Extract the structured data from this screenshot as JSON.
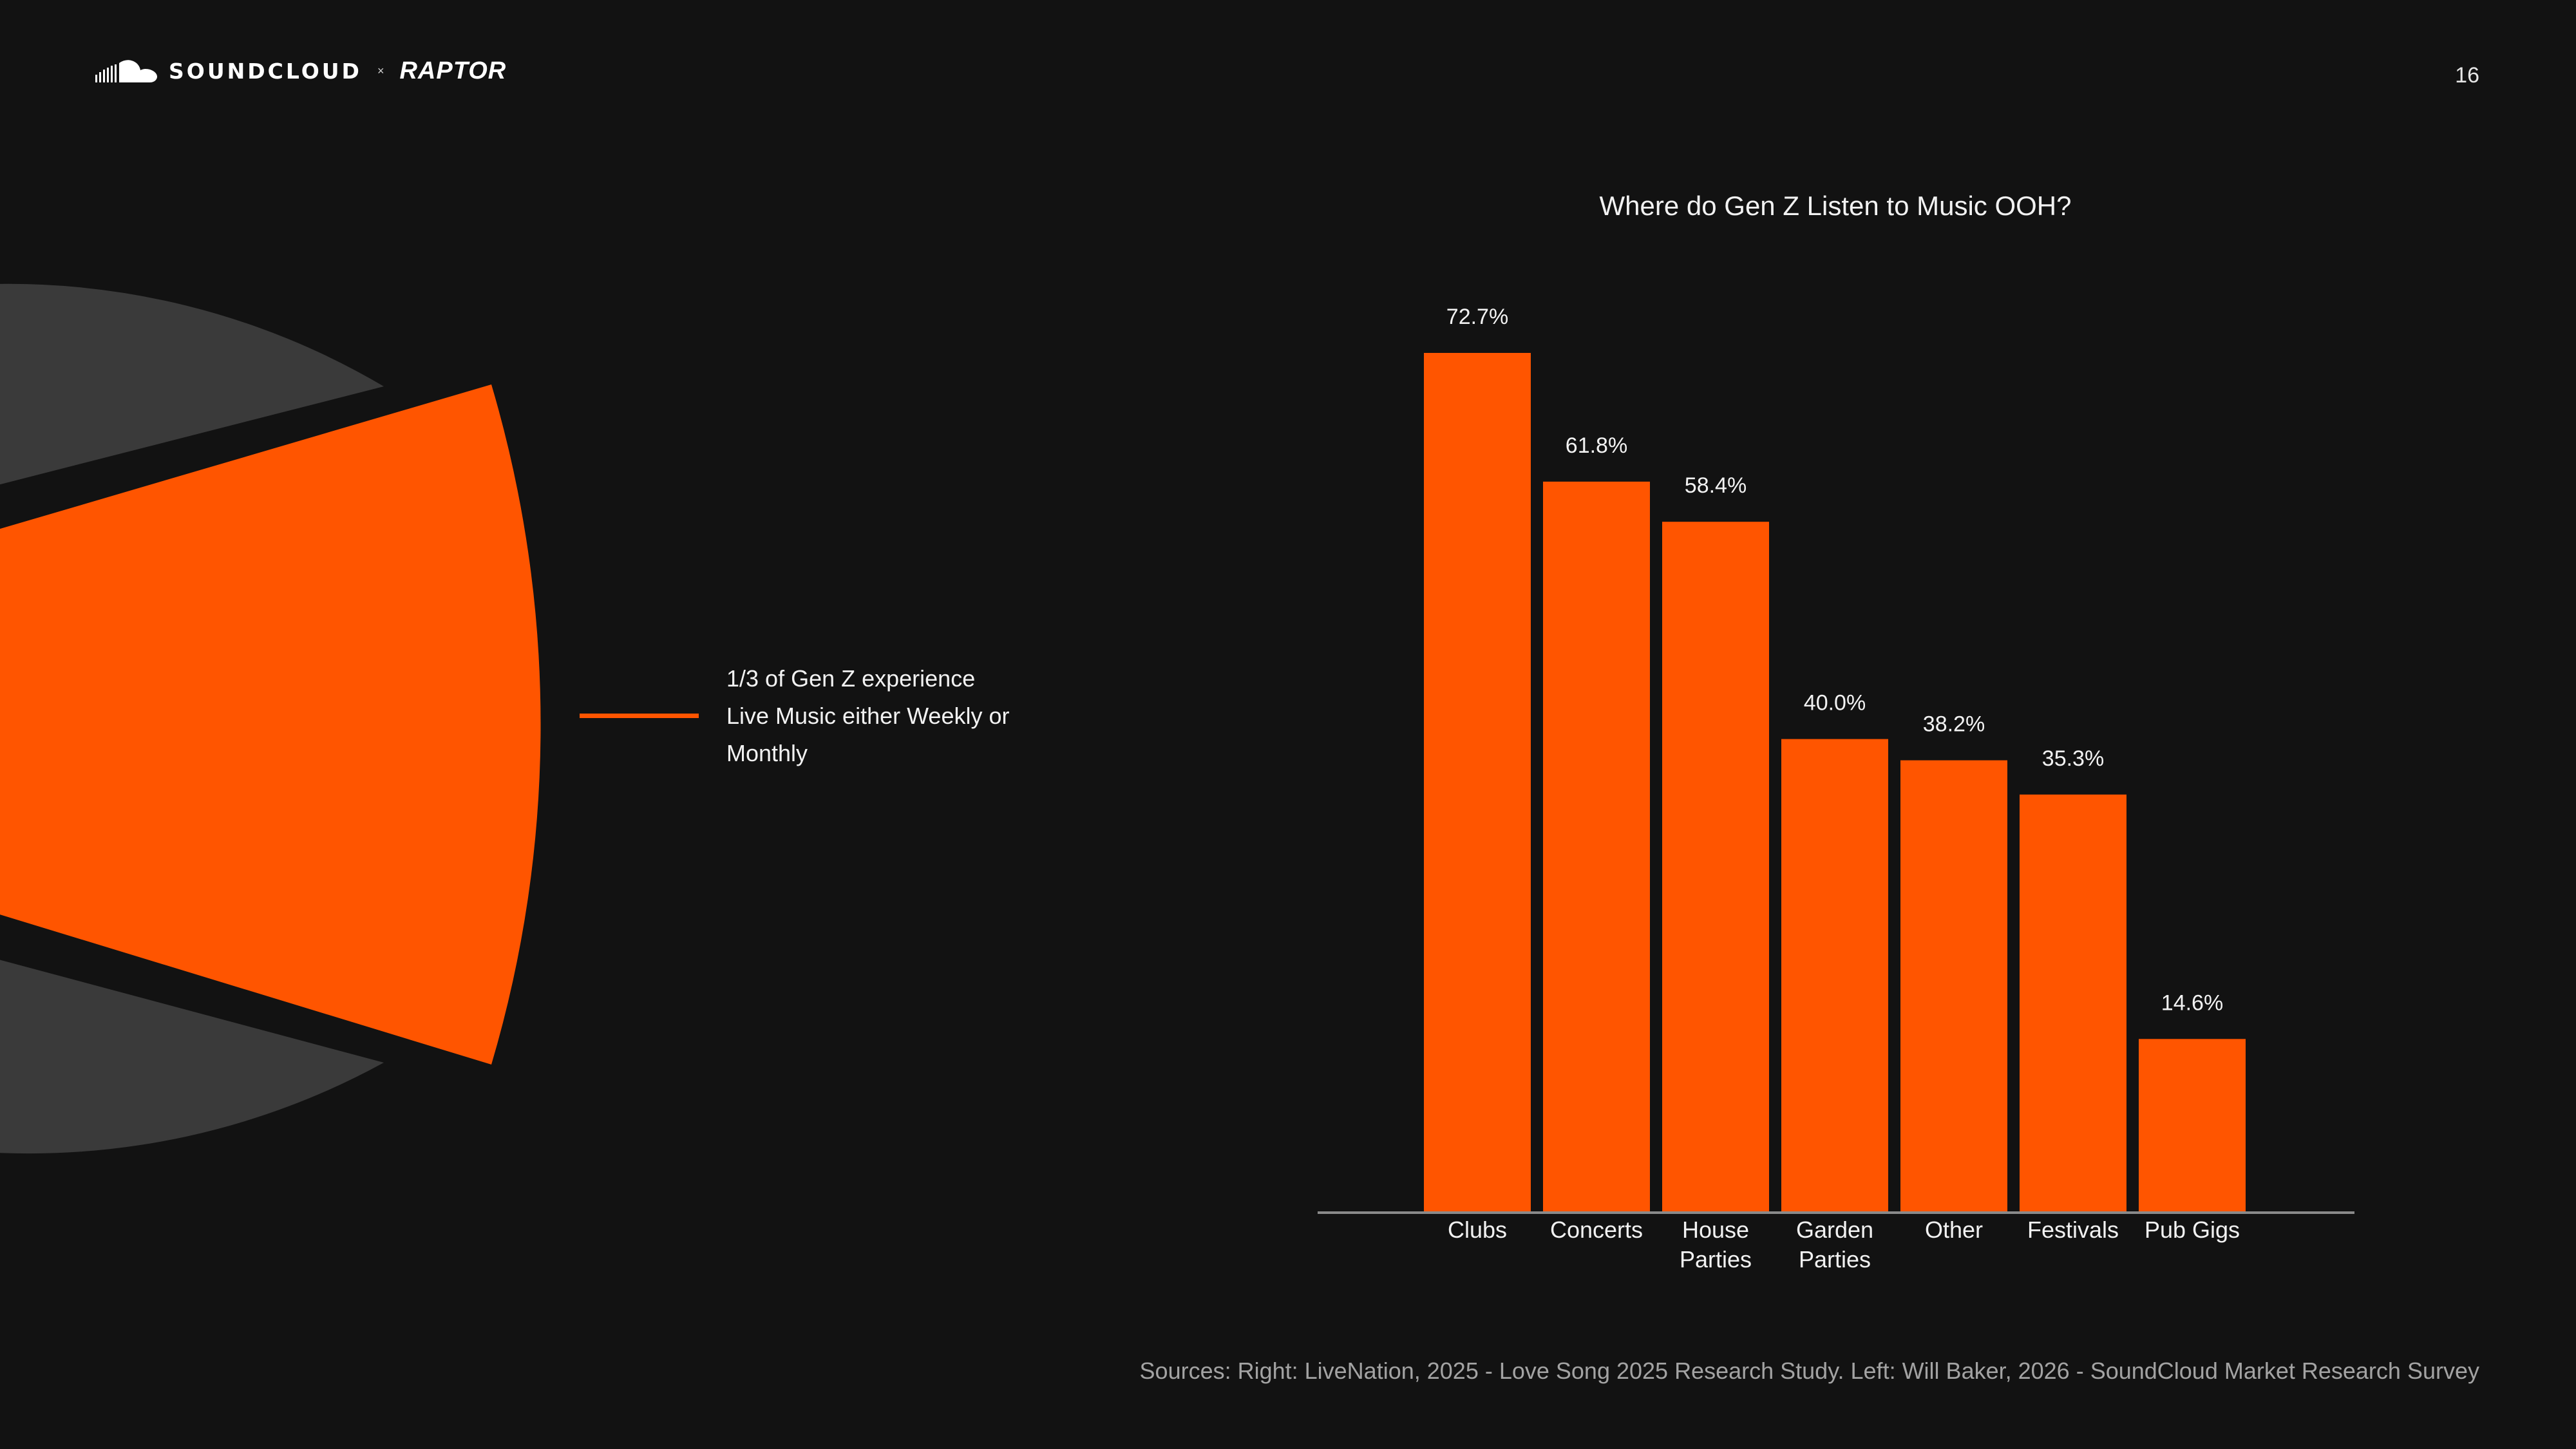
{
  "header": {
    "brand_left": "SOUNDCLOUD",
    "brand_separator": "×",
    "brand_right": "RAPTOR",
    "page_number": "16"
  },
  "left_panel": {
    "pie_highlight_fraction": 0.3333,
    "callout_line1": "1/3 of Gen Z experience",
    "callout_line2": "Live Music either Weekly or",
    "callout_line3": "Monthly",
    "colors": {
      "highlight": "#ff5500",
      "rest": "#3a3a3a"
    }
  },
  "footer": {
    "sources": "Sources: Right: LiveNation, 2025 - Love Song 2025 Research Study. Left:  Will Baker, 2026  - SoundCloud Market Research Survey"
  },
  "chart_data": {
    "type": "bar",
    "title": "Where do Gen Z Listen to Music OOH?",
    "categories": [
      [
        "Clubs"
      ],
      [
        "Concerts"
      ],
      [
        "House",
        "Parties"
      ],
      [
        "Garden",
        "Parties"
      ],
      [
        "Other"
      ],
      [
        "Festivals"
      ],
      [
        "Pub Gigs"
      ]
    ],
    "values": [
      72.7,
      61.8,
      58.4,
      40.0,
      38.2,
      35.3,
      14.6
    ],
    "value_labels": [
      "72.7%",
      "61.8%",
      "58.4%",
      "40.0%",
      "38.2%",
      "35.3%",
      "14.6%"
    ],
    "ylim": [
      0,
      72.7
    ],
    "grid": false,
    "bar_color": "#ff5500",
    "axis_color": "#8a8a8a"
  }
}
